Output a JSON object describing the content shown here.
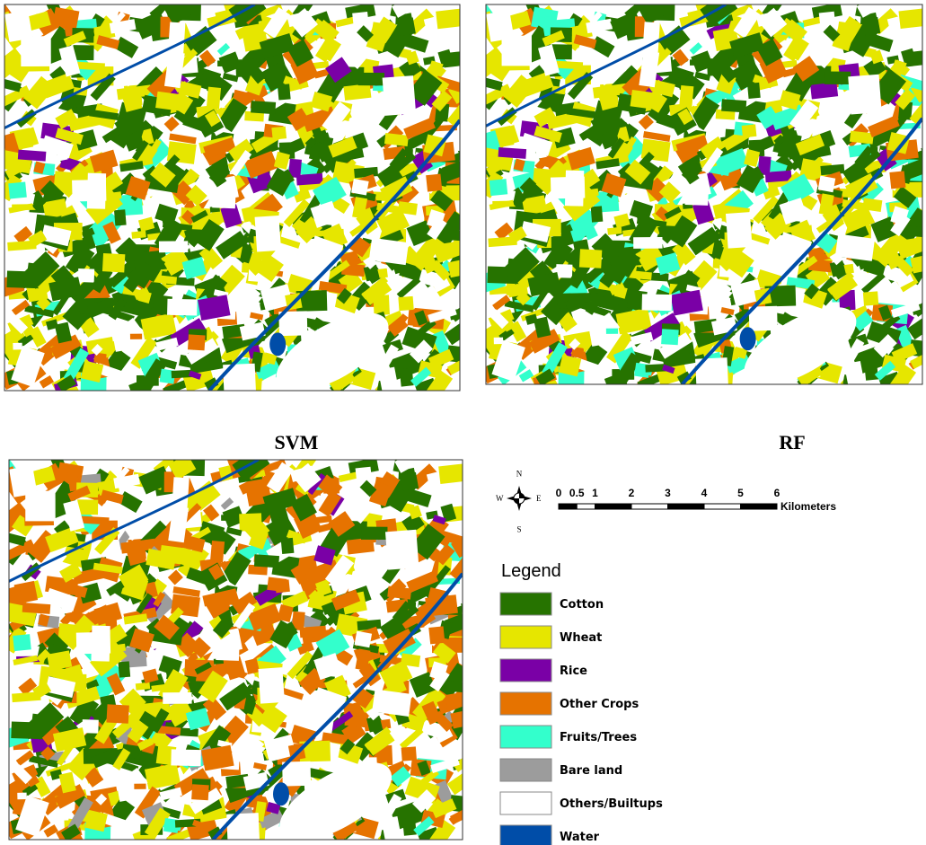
{
  "panels": [
    {
      "label": "SVM"
    },
    {
      "label": "RF"
    }
  ],
  "compass": {
    "n": "N",
    "s": "S",
    "e": "E",
    "w": "W"
  },
  "scale_bar": {
    "ticks": [
      0,
      0.5,
      1,
      2,
      3,
      4,
      5,
      6
    ],
    "unit": "Kilometers"
  },
  "legend": {
    "title": "Legend",
    "items": [
      {
        "label": "Cotton",
        "color": "#267300"
      },
      {
        "label": "Wheat",
        "color": "#e6e600"
      },
      {
        "label": "Rice",
        "color": "#7a00a6"
      },
      {
        "label": "Other Crops",
        "color": "#e67300"
      },
      {
        "label": "Fruits/Trees",
        "color": "#33ffcc"
      },
      {
        "label": "Bare land",
        "color": "#9c9c9c"
      },
      {
        "label": "Others/Builtups",
        "color": "#ffffff"
      },
      {
        "label": "Water",
        "color": "#004da8"
      }
    ]
  }
}
